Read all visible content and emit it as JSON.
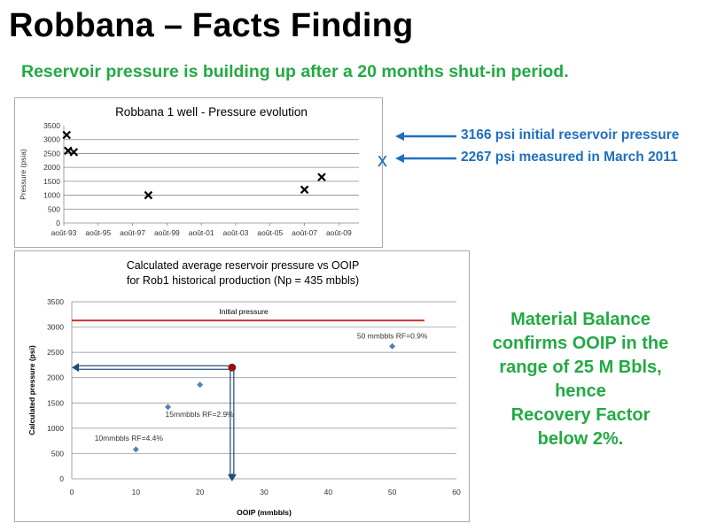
{
  "slide": {
    "title": "Robbana – Facts Finding",
    "subtitle": "Reservoir pressure is building up after a 20 months shut-in period.",
    "annotations": {
      "initial_pressure": "3166 psi initial reservoir pressure",
      "x_marker": "x",
      "march_2011": "2267 psi measured in March 2011"
    },
    "conclusion_lines": [
      "Material Balance",
      "confirms OOIP in the",
      "range of 25 M Bbls,",
      "hence",
      "Recovery Factor",
      "below 2%."
    ],
    "colors": {
      "title": "#000000",
      "green_text": "#22aa44",
      "blue_text": "#1f6fbf",
      "initial_line": "#cc3333",
      "points": "#4f81bd",
      "highlight": "#c00000"
    }
  },
  "chart_data": [
    {
      "type": "scatter",
      "title": "Robbana 1 well - Pressure evolution",
      "xlabel": "",
      "ylabel": "Pressure (psia)",
      "x_ticks": [
        "août-93",
        "août-95",
        "août-97",
        "août-99",
        "août-01",
        "août-03",
        "août-05",
        "août-07",
        "août-09"
      ],
      "y_ticks": [
        0,
        500,
        1000,
        1500,
        2000,
        2500,
        3000,
        3500
      ],
      "xlim": [
        "1993-08",
        "2010-10"
      ],
      "ylim": [
        0,
        3500
      ],
      "grid": "horizontal",
      "marker": "x",
      "points": [
        {
          "x": "1993-10",
          "y": 3166
        },
        {
          "x": "1993-11",
          "y": 2600
        },
        {
          "x": "1994-03",
          "y": 2550
        },
        {
          "x": "1998-07",
          "y": 1000
        },
        {
          "x": "2007-08",
          "y": 1200
        },
        {
          "x": "2008-08",
          "y": 1650
        }
      ]
    },
    {
      "type": "scatter",
      "title": "Calculated  average reservoir pressure vs OOIP",
      "subtitle": "for Rob1 historical production (Np = 435 mbbls)",
      "xlabel": "OOIP (mmbbls)",
      "ylabel": "Calculated pressure (psi)",
      "x_ticks": [
        0,
        10,
        20,
        30,
        40,
        50,
        60
      ],
      "y_ticks": [
        0,
        500,
        1000,
        1500,
        2000,
        2500,
        3000,
        3500
      ],
      "xlim": [
        0,
        60
      ],
      "ylim": [
        0,
        3500
      ],
      "grid": "horizontal",
      "initial_pressure": {
        "label": "Initial pressure",
        "y": 3130,
        "x_range": [
          0,
          55
        ]
      },
      "points": [
        {
          "x": 10,
          "y": 580
        },
        {
          "x": 15,
          "y": 1420
        },
        {
          "x": 20,
          "y": 1860
        },
        {
          "x": 50,
          "y": 2620
        }
      ],
      "point_labels": [
        {
          "text": "10mmbbls RF=4.4%",
          "x": 10,
          "y": 580
        },
        {
          "text": "15mmbbls RF=2.9%",
          "x": 15,
          "y": 1420
        },
        {
          "text": "50 mmbbls RF=0.9%",
          "x": 50,
          "y": 2620
        }
      ],
      "highlight_point": {
        "x": 25,
        "y": 2200
      }
    }
  ]
}
